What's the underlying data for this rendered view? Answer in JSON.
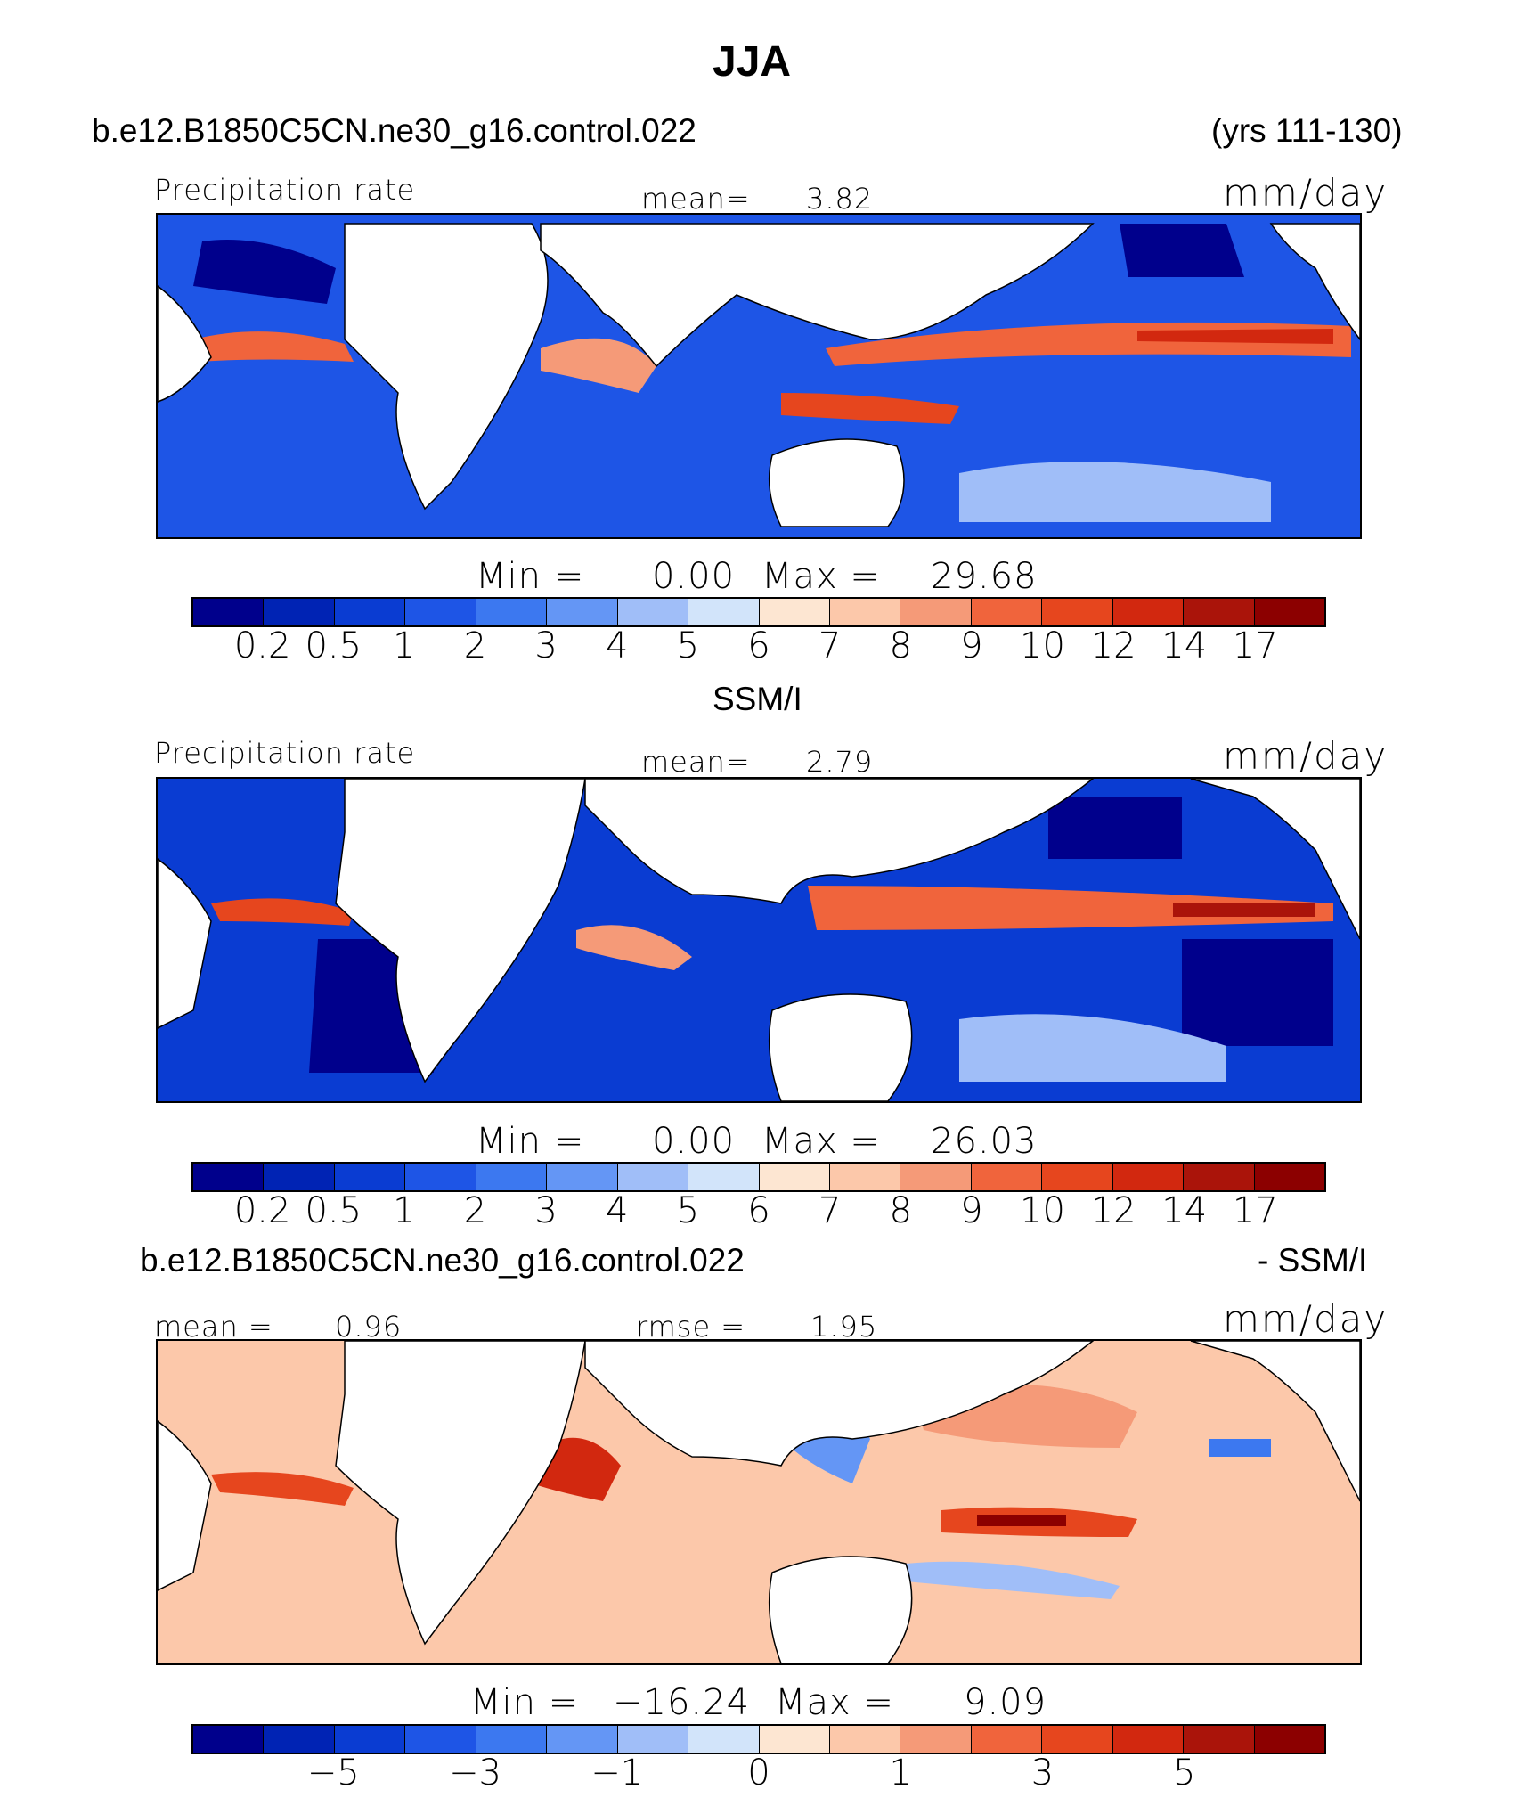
{
  "title": "JJA",
  "case_name": "b.e12.B1850C5CN.ne30_g16.control.022",
  "years": "(yrs 111-130)",
  "obs_name": "SSM/I",
  "diff_suffix": "- SSM/I",
  "panels": {
    "model": {
      "label": "Precipitation rate",
      "mean_label": "mean=",
      "mean_value": "3.82",
      "units": "mm/day",
      "min_label": "Min  =",
      "min_value": "0.00",
      "max_label": "Max  =",
      "max_value": "29.68",
      "ticks": [
        "0.2",
        "0.5",
        "1",
        "2",
        "3",
        "4",
        "5",
        "6",
        "7",
        "8",
        "9",
        "10",
        "12",
        "14",
        "17"
      ]
    },
    "obs": {
      "label": "Precipitation rate",
      "mean_label": "mean=",
      "mean_value": "2.79",
      "units": "mm/day",
      "min_label": "Min  =",
      "min_value": "0.00",
      "max_label": "Max  =",
      "max_value": "26.03",
      "ticks": [
        "0.2",
        "0.5",
        "1",
        "2",
        "3",
        "4",
        "5",
        "6",
        "7",
        "8",
        "9",
        "10",
        "12",
        "14",
        "17"
      ]
    },
    "diff": {
      "mean_label": "mean  =",
      "mean_value": "0.96",
      "rmse_label": "rmse  =",
      "rmse_value": "1.95",
      "units": "mm/day",
      "min_label": "Min  =",
      "min_value": "−16.24",
      "max_label": "Max  =",
      "max_value": "9.09",
      "ticks": [
        "−5",
        "−3",
        "−1",
        "0",
        "1",
        "3",
        "5"
      ]
    }
  },
  "colorbar_colors": [
    "#00008c",
    "#0023b4",
    "#0a3cd2",
    "#1e55e6",
    "#3c78f0",
    "#6496f5",
    "#a0bef8",
    "#d2e4fa",
    "#fde6d2",
    "#fcc8aa",
    "#f59a78",
    "#f0643c",
    "#e6461e",
    "#d2280f",
    "#aa140a",
    "#8c0000"
  ],
  "legend_colors": {
    "dry": "#0a3cd2",
    "moderate": "#a0bef8",
    "wet": "#f0643c",
    "very_wet": "#aa140a",
    "land": "#ffffff"
  }
}
